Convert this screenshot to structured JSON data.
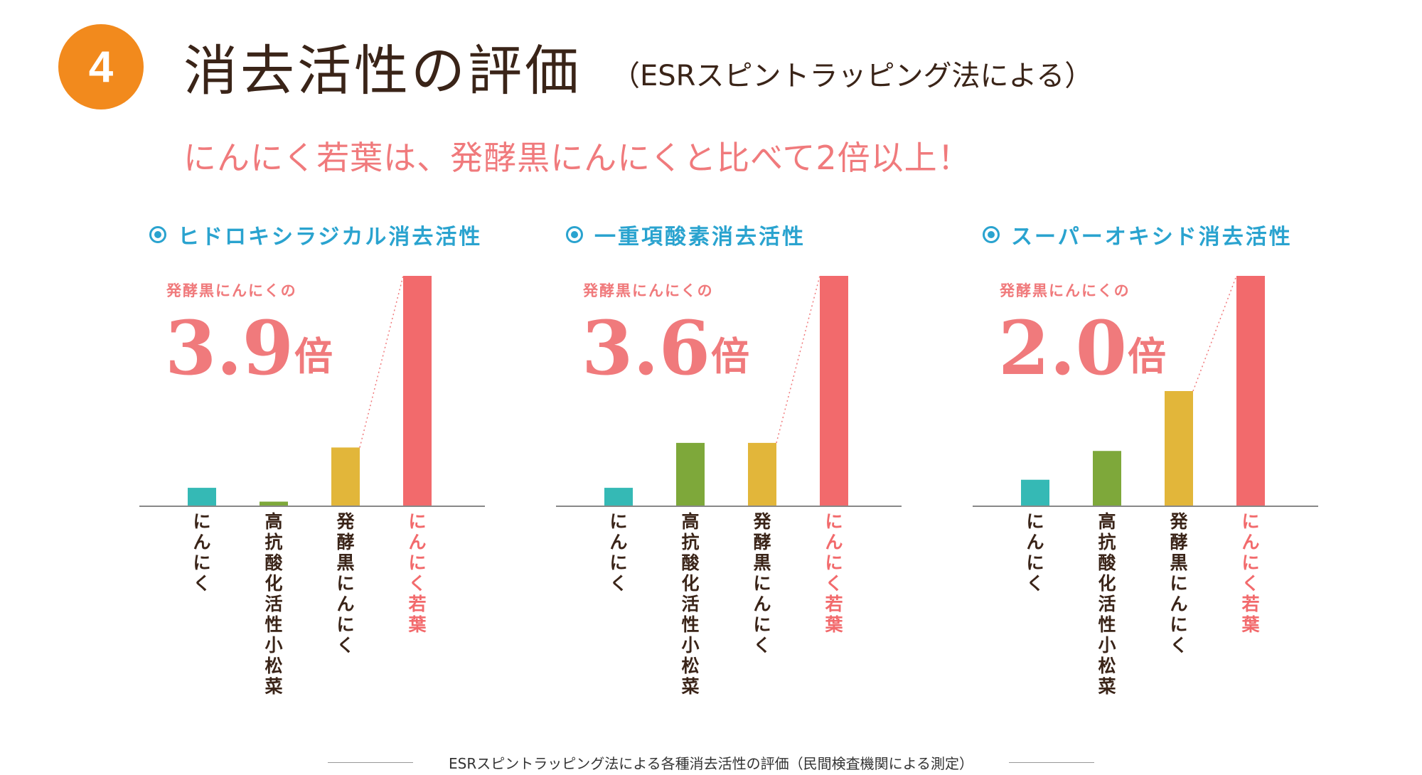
{
  "header": {
    "badge_number": "4",
    "title": "消去活性の評価",
    "subtitle": "（ESRスピントラッピング法による）",
    "lead": "にんにく若葉は、発酵黒にんにくと比べて2倍以上！"
  },
  "colors": {
    "badge": "#f28a1d",
    "title": "#3a2418",
    "accent_red": "#f07a7c",
    "panel_title": "#2aa3cf",
    "garlic": "#35b9b5",
    "komatsuna": "#7ea83a",
    "black_garlic": "#e2b63a",
    "garlic_leaf": "#f26a6c"
  },
  "footer": {
    "caption": "ESRスピントラッピング法による各種消去活性の評価（民間検査機関による測定）"
  },
  "chart_data": [
    {
      "type": "bar",
      "title": "ヒドロキシラジカル消去活性",
      "categories": [
        "にんにく",
        "高抗酸化活性小松菜",
        "発酵黒にんにく",
        "にんにく若葉"
      ],
      "values": [
        8,
        2,
        25.5,
        100
      ],
      "ylim": [
        0,
        100
      ],
      "callout": {
        "prefix": "発酵黒にんにくの",
        "value": "3.9",
        "unit": "倍"
      }
    },
    {
      "type": "bar",
      "title": "一重項酸素消去活性",
      "categories": [
        "にんにく",
        "高抗酸化活性小松菜",
        "発酵黒にんにく",
        "にんにく若葉"
      ],
      "values": [
        8,
        27.5,
        27.5,
        100
      ],
      "ylim": [
        0,
        100
      ],
      "callout": {
        "prefix": "発酵黒にんにくの",
        "value": "3.6",
        "unit": "倍"
      }
    },
    {
      "type": "bar",
      "title": "スーパーオキシド消去活性",
      "categories": [
        "にんにく",
        "高抗酸化活性小松菜",
        "発酵黒にんにく",
        "にんにく若葉"
      ],
      "values": [
        11.5,
        24,
        50,
        100
      ],
      "ylim": [
        0,
        100
      ],
      "callout": {
        "prefix": "発酵黒にんにくの",
        "value": "2.0",
        "unit": "倍"
      }
    }
  ]
}
